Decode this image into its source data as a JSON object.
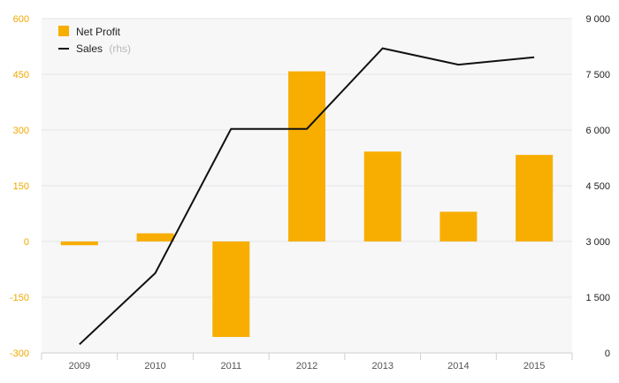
{
  "chart_data": {
    "type": "bar",
    "categories": [
      "2009",
      "2010",
      "2011",
      "2012",
      "2013",
      "2014",
      "2015"
    ],
    "series": [
      {
        "name": "Net Profit",
        "type": "bar",
        "axis": "left",
        "values": [
          -10,
          22,
          -257,
          458,
          242,
          80,
          233
        ]
      },
      {
        "name": "Sales",
        "name_suffix": "(rhs)",
        "type": "line",
        "axis": "right",
        "values": [
          230,
          2150,
          6030,
          6030,
          8200,
          7760,
          7960
        ]
      }
    ],
    "left_axis": {
      "range": [
        -300,
        600
      ],
      "ticks": [
        600,
        450,
        300,
        150,
        0,
        -150,
        -300
      ],
      "tick_labels": [
        "600",
        "450",
        "300",
        "150",
        "0",
        "-150",
        "-300"
      ]
    },
    "right_axis": {
      "range": [
        0,
        9000
      ],
      "ticks": [
        9000,
        7500,
        6000,
        4500,
        3000,
        1500,
        0
      ],
      "tick_labels": [
        "9 000",
        "7 500",
        "6 000",
        "4 500",
        "3 000",
        "1 500",
        "0"
      ]
    },
    "grid": true,
    "legend_position": "top-left",
    "colors": {
      "bar": "#f7ae00",
      "line": "#111111",
      "plot_bg": "#f7f7f8",
      "grid": "#e6e6e8",
      "left_tick": "#f0a800"
    }
  }
}
